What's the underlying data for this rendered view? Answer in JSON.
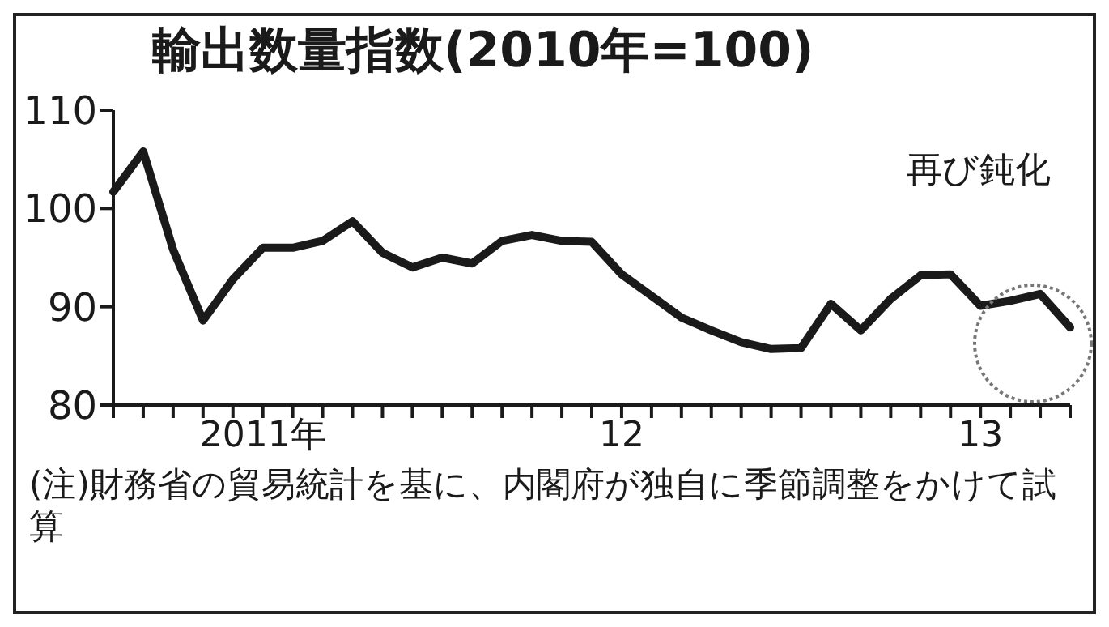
{
  "chart_data": {
    "type": "line",
    "title": "輸出数量指数(2010年=100)",
    "categories": [
      null,
      null,
      null,
      null,
      null,
      "2011年",
      null,
      null,
      null,
      null,
      null,
      null,
      null,
      null,
      null,
      null,
      null,
      "12",
      null,
      null,
      null,
      null,
      null,
      null,
      null,
      null,
      null,
      null,
      null,
      "13",
      null,
      null,
      null
    ],
    "series": [
      {
        "color": "#1a1a1a",
        "values": [
          101.7,
          105.8,
          95.8,
          88.6,
          92.8,
          96.0,
          96.0,
          96.7,
          98.7,
          95.5,
          94.0,
          95.0,
          94.4,
          96.7,
          97.3,
          96.7,
          96.6,
          93.3,
          91.1,
          88.9,
          87.6,
          86.4,
          85.7,
          85.8,
          90.3,
          87.6,
          90.8,
          93.2,
          93.3,
          90.1,
          90.6,
          91.3,
          87.9
        ]
      }
    ],
    "ylim": [
      80,
      110
    ],
    "yticks": [
      80,
      90,
      100,
      110
    ],
    "grid": false,
    "legend": false,
    "marker": "none",
    "line_style": "solid",
    "annotations": [
      "再び鈍化",
      "(注)財務省の貿易統計を基に、内閣府が独自に季節調整をかけて試算"
    ]
  }
}
